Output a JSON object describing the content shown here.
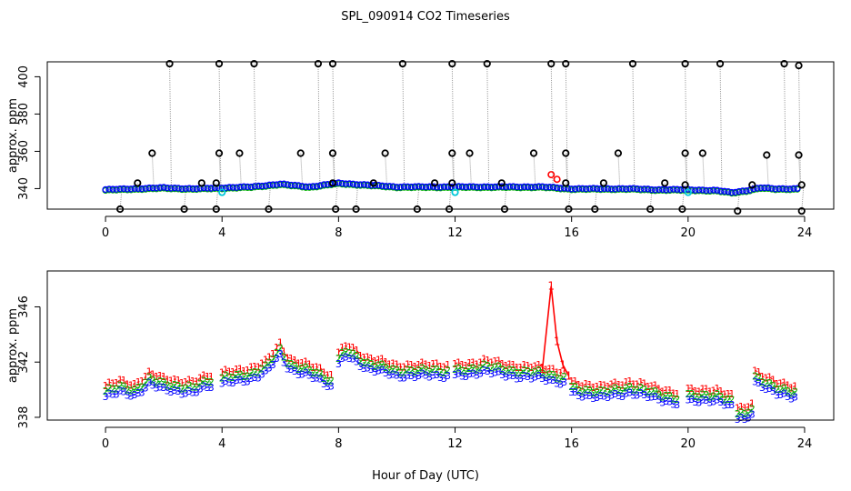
{
  "figure_title": "SPL_090914  CO2 Timeseries",
  "shared_xlabel": "Hour of Day (UTC)",
  "colors": {
    "axis": "#000000",
    "raw_dots": "#000000",
    "raw_lines": "#a0a0a0",
    "series_1": "#ff0000",
    "series_2": "#00b000",
    "series_3": "#0000ff",
    "flagged": "#00c8d8"
  },
  "chart_data": [
    {
      "type": "scatter",
      "panel": "top",
      "title": "",
      "xlabel": "",
      "ylabel": "approx. ppm",
      "xlim": [
        -2,
        25
      ],
      "ylim": [
        329,
        408
      ],
      "x_ticks": [
        0,
        4,
        8,
        12,
        16,
        20,
        24
      ],
      "y_ticks": [
        340,
        360,
        380,
        400
      ],
      "y_tick_labels": [
        "340",
        "360",
        "380",
        "400"
      ],
      "grid": false,
      "legend": "none",
      "baseline": {
        "x": [
          0,
          1,
          2,
          3,
          4,
          5,
          6,
          7,
          8,
          9,
          10,
          11,
          12,
          13,
          14,
          15,
          16,
          17,
          18,
          19,
          20,
          21,
          21.5,
          22,
          22.5,
          23,
          23.8
        ],
        "y": [
          339.5,
          340,
          340.5,
          340,
          340.5,
          341,
          342.5,
          341,
          343,
          342,
          341,
          341,
          341,
          341,
          341,
          341,
          340,
          340,
          340,
          339.5,
          339.5,
          339,
          338,
          339,
          340.5,
          340,
          340
        ]
      },
      "outliers_high": [
        {
          "x": 2.2,
          "y": 407
        },
        {
          "x": 3.9,
          "y": 407
        },
        {
          "x": 5.1,
          "y": 407
        },
        {
          "x": 7.3,
          "y": 407
        },
        {
          "x": 7.8,
          "y": 407
        },
        {
          "x": 10.2,
          "y": 407
        },
        {
          "x": 11.9,
          "y": 407
        },
        {
          "x": 13.1,
          "y": 407
        },
        {
          "x": 15.3,
          "y": 407
        },
        {
          "x": 15.8,
          "y": 407
        },
        {
          "x": 18.1,
          "y": 407
        },
        {
          "x": 19.9,
          "y": 407
        },
        {
          "x": 21.1,
          "y": 407
        },
        {
          "x": 23.3,
          "y": 407
        },
        {
          "x": 23.8,
          "y": 406
        },
        {
          "x": 1.6,
          "y": 359
        },
        {
          "x": 3.9,
          "y": 359
        },
        {
          "x": 4.6,
          "y": 359
        },
        {
          "x": 6.7,
          "y": 359
        },
        {
          "x": 7.8,
          "y": 359
        },
        {
          "x": 9.6,
          "y": 359
        },
        {
          "x": 11.9,
          "y": 359
        },
        {
          "x": 12.5,
          "y": 359
        },
        {
          "x": 14.7,
          "y": 359
        },
        {
          "x": 15.8,
          "y": 359
        },
        {
          "x": 17.6,
          "y": 359
        },
        {
          "x": 19.9,
          "y": 359
        },
        {
          "x": 20.5,
          "y": 359
        },
        {
          "x": 22.7,
          "y": 358
        },
        {
          "x": 23.8,
          "y": 358
        },
        {
          "x": 1.1,
          "y": 343
        },
        {
          "x": 3.3,
          "y": 343
        },
        {
          "x": 3.8,
          "y": 343
        },
        {
          "x": 7.8,
          "y": 343
        },
        {
          "x": 9.2,
          "y": 343
        },
        {
          "x": 11.3,
          "y": 343
        },
        {
          "x": 11.9,
          "y": 343
        },
        {
          "x": 13.6,
          "y": 343
        },
        {
          "x": 15.8,
          "y": 343
        },
        {
          "x": 17.1,
          "y": 343
        },
        {
          "x": 19.2,
          "y": 343
        },
        {
          "x": 19.9,
          "y": 342
        },
        {
          "x": 22.2,
          "y": 342
        },
        {
          "x": 23.9,
          "y": 342
        }
      ],
      "outliers_low": [
        {
          "x": 0.5,
          "y": 329
        },
        {
          "x": 2.7,
          "y": 329
        },
        {
          "x": 3.8,
          "y": 329
        },
        {
          "x": 5.6,
          "y": 329
        },
        {
          "x": 7.9,
          "y": 329
        },
        {
          "x": 8.6,
          "y": 329
        },
        {
          "x": 10.7,
          "y": 329
        },
        {
          "x": 11.8,
          "y": 329
        },
        {
          "x": 13.7,
          "y": 329
        },
        {
          "x": 15.9,
          "y": 329
        },
        {
          "x": 16.8,
          "y": 329
        },
        {
          "x": 18.7,
          "y": 329
        },
        {
          "x": 19.8,
          "y": 329
        },
        {
          "x": 21.7,
          "y": 328
        },
        {
          "x": 23.9,
          "y": 328
        }
      ],
      "red_points": [
        {
          "x": 15.3,
          "y": 347.5
        },
        {
          "x": 15.5,
          "y": 345
        }
      ],
      "cyan_points": [
        {
          "x": 4.0,
          "y": 338
        },
        {
          "x": 12.0,
          "y": 338
        },
        {
          "x": 20.0,
          "y": 338
        }
      ]
    },
    {
      "type": "line",
      "panel": "bottom",
      "title": "",
      "xlabel": "Hour of Day (UTC)",
      "ylabel": "approx. ppm",
      "xlim": [
        -2,
        25
      ],
      "ylim": [
        337.8,
        348.6
      ],
      "x_ticks": [
        0,
        4,
        8,
        12,
        16,
        20,
        24
      ],
      "y_ticks": [
        338,
        342,
        346
      ],
      "y_tick_labels": [
        "338",
        "342",
        "346"
      ],
      "grid": false,
      "legend": "none",
      "series": [
        {
          "name": "1",
          "marker": "1",
          "color": "#ff0000",
          "offset": 0.8
        },
        {
          "name": "2",
          "marker": "2",
          "color": "#00b000",
          "offset": 0.4
        },
        {
          "name": "3",
          "marker": "3",
          "color": "#0000ff",
          "offset": 0.0
        }
      ],
      "segments": [
        {
          "x": [
            0,
            0.5,
            1,
            1.5,
            2,
            3,
            3.7
          ],
          "y": [
            339.5,
            339.8,
            339.6,
            340.4,
            340,
            339.8,
            340.3
          ]
        },
        {
          "x": [
            4,
            5,
            5.5,
            6,
            6.3,
            7,
            7.8
          ],
          "y": [
            340.4,
            340.8,
            341.2,
            342.5,
            341.5,
            341,
            340.2
          ]
        },
        {
          "x": [
            8,
            8.3,
            9,
            10,
            11,
            11.8
          ],
          "y": [
            341.8,
            342.5,
            341.5,
            341,
            341,
            341
          ]
        },
        {
          "x": [
            12,
            13,
            14,
            15,
            15.8
          ],
          "y": [
            341,
            341.3,
            341,
            340.8,
            340.5
          ]
        },
        {
          "x": [
            16,
            17,
            18,
            19,
            19.7
          ],
          "y": [
            339.8,
            339.4,
            339.8,
            339.3,
            339
          ]
        },
        {
          "x": [
            20,
            21,
            21.6
          ],
          "y": [
            339.3,
            339.1,
            338.8
          ]
        },
        {
          "x": [
            21.7,
            22.2
          ],
          "y": [
            337.9,
            338.1
          ]
        },
        {
          "x": [
            22.3,
            22.5,
            23,
            23.7
          ],
          "y": [
            340.6,
            340.3,
            339.7,
            339.5
          ]
        }
      ],
      "spike": {
        "series": "1",
        "x": [
          15.0,
          15.3,
          15.5,
          15.7,
          15.9
        ],
        "y": [
          341.5,
          347.5,
          343.5,
          341.8,
          341
        ]
      }
    }
  ]
}
